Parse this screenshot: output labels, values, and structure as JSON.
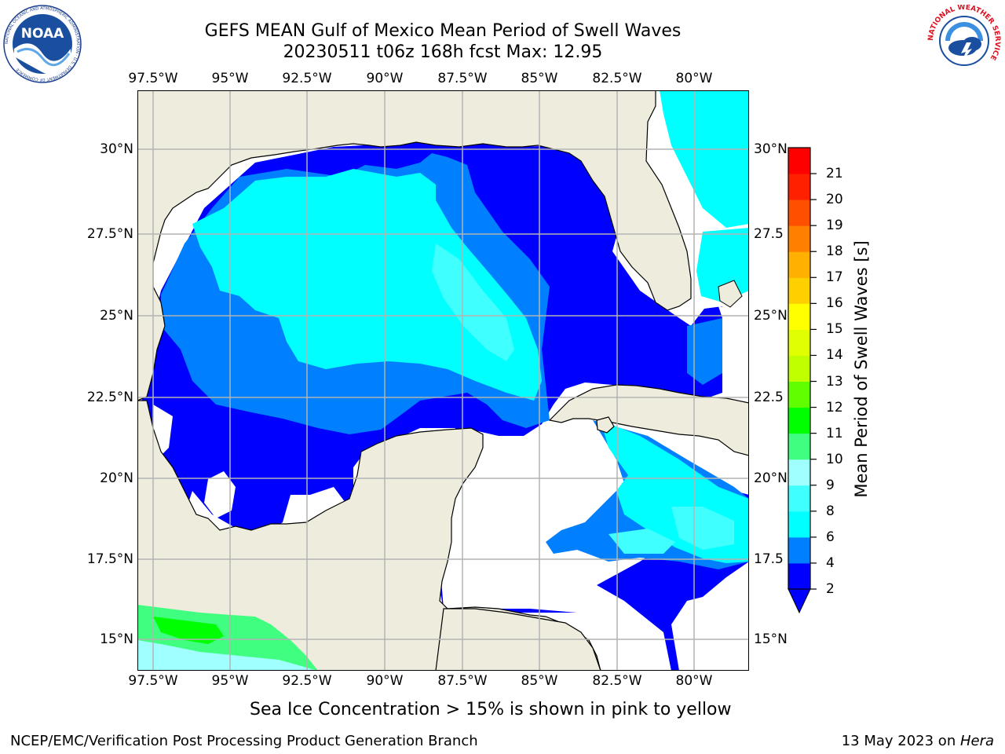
{
  "title": "GEFS MEAN Gulf of Mexico Mean Period of Swell Waves",
  "subtitle": "20230511 t06z 168h fcst   Max: 12.95",
  "map": {
    "lon_ticks": [
      "97.5°W",
      "95°W",
      "92.5°W",
      "90°W",
      "87.5°W",
      "85°W",
      "82.5°W",
      "80°W"
    ],
    "lat_ticks_left": [
      "30°N",
      "27.5°N",
      "25°N",
      "22.5°N",
      "20°N",
      "17.5°N",
      "15°N"
    ],
    "lat_ticks_right": [
      "30°N",
      "27.5",
      "25°N",
      "22.5",
      "20°N",
      "17.5",
      "15°N"
    ],
    "lon_range": [
      -98.0,
      -78.2
    ],
    "lat_range": [
      14.0,
      31.9
    ],
    "grid": true,
    "colors": {
      "land": "#eeecdc",
      "no_data": "#ffffff",
      "grid": "#b3b3b3",
      "coast": "#000000"
    }
  },
  "colorbar": {
    "label": "Mean Period of Swell Waves [s]",
    "ticks": [
      "2",
      "4",
      "6",
      "8",
      "9",
      "10",
      "11",
      "12",
      "13",
      "14",
      "15",
      "16",
      "17",
      "18",
      "19",
      "20",
      "21"
    ],
    "bands": [
      {
        "from": 2,
        "to": 4,
        "color": "#0000ff"
      },
      {
        "from": 4,
        "to": 6,
        "color": "#0080ff"
      },
      {
        "from": 6,
        "to": 8,
        "color": "#00ffff"
      },
      {
        "from": 8,
        "to": 9,
        "color": "#40ffff"
      },
      {
        "from": 9,
        "to": 10,
        "color": "#a0ffff"
      },
      {
        "from": 10,
        "to": 11,
        "color": "#40ff80"
      },
      {
        "from": 11,
        "to": 12,
        "color": "#00ff00"
      },
      {
        "from": 12,
        "to": 13,
        "color": "#60ff00"
      },
      {
        "from": 13,
        "to": 14,
        "color": "#c0ff00"
      },
      {
        "from": 14,
        "to": 15,
        "color": "#e0ff00"
      },
      {
        "from": 15,
        "to": 16,
        "color": "#ffff00"
      },
      {
        "from": 16,
        "to": 17,
        "color": "#ffd000"
      },
      {
        "from": 17,
        "to": 18,
        "color": "#ffb000"
      },
      {
        "from": 18,
        "to": 19,
        "color": "#ff8000"
      },
      {
        "from": 19,
        "to": 20,
        "color": "#ff5000"
      },
      {
        "from": 20,
        "to": 21,
        "color": "#ff2000"
      },
      {
        "from": 21,
        "to": 22,
        "color": "#ff0000"
      }
    ],
    "under_color": "#0000ff"
  },
  "footnote": "Sea Ice Concentration > 15% is shown in pink to yellow",
  "footer_left": "NCEP/EMC/Verification Post Processing Product Generation Branch",
  "footer_right_prefix": "13 May 2023 on ",
  "footer_right_host": "Hera",
  "logos": {
    "noaa_text": "NOAA",
    "noaa_ring_text": "NATIONAL OCEANIC AND ATMOSPHERIC ADMINISTRATION · U.S. DEPARTMENT OF COMMERCE",
    "nws_ring_text": "NATIONAL WEATHER SERVICE"
  }
}
